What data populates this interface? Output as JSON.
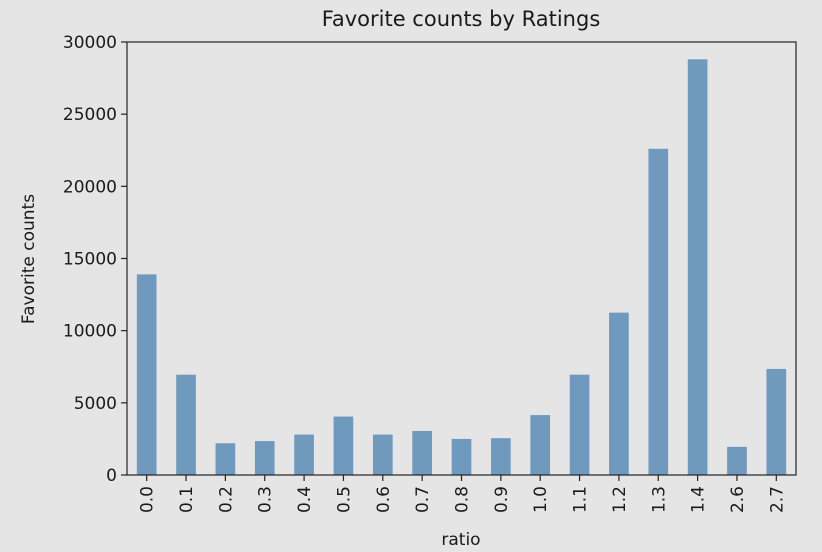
{
  "chart_data": {
    "type": "bar",
    "title": "Favorite counts by Ratings",
    "xlabel": "ratio",
    "ylabel": "Favorite counts",
    "categories": [
      "0.0",
      "0.1",
      "0.2",
      "0.3",
      "0.4",
      "0.5",
      "0.6",
      "0.7",
      "0.8",
      "0.9",
      "1.0",
      "1.1",
      "1.2",
      "1.3",
      "1.4",
      "2.6",
      "2.7"
    ],
    "values": [
      13900,
      6950,
      2200,
      2350,
      2800,
      4050,
      2800,
      3050,
      2500,
      2550,
      4150,
      6950,
      11250,
      22600,
      28800,
      1950,
      7350
    ],
    "ylim": [
      0,
      30000
    ],
    "yticks": [
      0,
      5000,
      10000,
      15000,
      20000,
      25000,
      30000
    ],
    "grid": false,
    "bar_color": "#6f9abd",
    "background_color": "#e5e5e5"
  }
}
